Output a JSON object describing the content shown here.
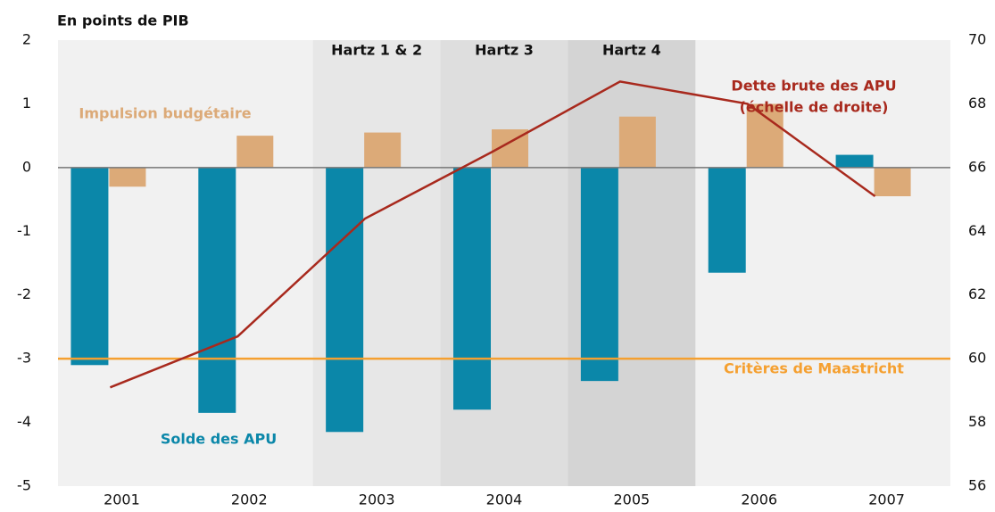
{
  "chart_data": {
    "type": "bar",
    "y_label": "En points de PIB",
    "categories": [
      "2001",
      "2002",
      "2003",
      "2004",
      "2005",
      "2006",
      "2007"
    ],
    "series": [
      {
        "name": "Solde des APU",
        "color": "#0b87a9",
        "values": [
          -3.1,
          -3.85,
          -4.15,
          -3.8,
          -3.35,
          -1.65,
          0.2
        ]
      },
      {
        "name": "Impulsion budgétaire",
        "color": "#dcaa78",
        "values": [
          -0.3,
          0.5,
          0.55,
          0.6,
          0.8,
          1.0,
          -0.45
        ]
      },
      {
        "name": "Dette brute des APU",
        "type": "line",
        "axis": "y2",
        "color": "#a8291d",
        "values": [
          59.1,
          60.7,
          64.4,
          66.5,
          68.7,
          68.0,
          65.1
        ]
      }
    ],
    "line_note": "(échelle de droite)",
    "reference": {
      "label": "Critères de Maastricht",
      "value": -3,
      "color": "#f5a030"
    },
    "periods": [
      {
        "label": "Hartz 1 & 2",
        "category": "2003",
        "color": "#e7e7e7"
      },
      {
        "label": "Hartz 3",
        "category": "2004",
        "color": "#dedede"
      },
      {
        "label": "Hartz 4",
        "category": "2005",
        "color": "#d4d4d4"
      }
    ],
    "ylim": [
      -5,
      2
    ],
    "yticks": [
      -5,
      -4,
      -3,
      -2,
      -1,
      0,
      1,
      2
    ],
    "y2lim": [
      56,
      70
    ],
    "y2ticks": [
      56,
      58,
      60,
      62,
      64,
      66,
      68,
      70
    ]
  }
}
